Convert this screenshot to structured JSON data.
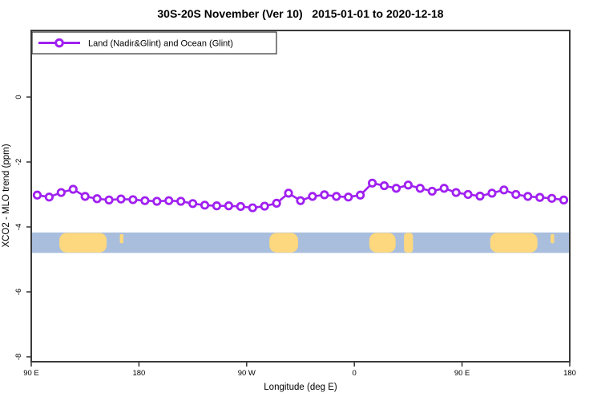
{
  "title": "30S-20S November (Ver 10)   2015-01-01 to 2020-12-18",
  "legend": {
    "label": "Land (Nadir&Glint) and Ocean (Glint)",
    "marker": "open-circle",
    "line_color": "#A020F0",
    "position": "top-left"
  },
  "chart_data": {
    "type": "line",
    "title": "30S-20S November (Ver 10)   2015-01-01 to 2020-12-18",
    "xlabel": "Longitude (deg E)",
    "ylabel": "XCO2 - MLO trend (ppm)",
    "xlim": [
      90,
      540
    ],
    "ylim": [
      -8.15,
      2.05
    ],
    "grid": false,
    "legend_position": "top-left",
    "x_ticks": [
      {
        "value": 90,
        "label": "90 E"
      },
      {
        "value": 180,
        "label": "180"
      },
      {
        "value": 270,
        "label": "90 W"
      },
      {
        "value": 360,
        "label": "0"
      },
      {
        "value": 450,
        "label": "90 E"
      },
      {
        "value": 540,
        "label": "180"
      }
    ],
    "y_ticks": [
      {
        "value": 0,
        "label": "0"
      },
      {
        "value": -2,
        "label": "-2"
      },
      {
        "value": -4,
        "label": "-4"
      },
      {
        "value": -6,
        "label": "-6"
      },
      {
        "value": -8,
        "label": "-8"
      }
    ],
    "series": [
      {
        "name": "Land (Nadir&Glint) and Ocean (Glint)",
        "color": "#A020F0",
        "marker": "open-circle",
        "x": [
          95,
          105,
          115,
          125,
          135,
          145,
          155,
          165,
          175,
          185,
          195,
          205,
          215,
          225,
          235,
          245,
          255,
          265,
          275,
          285,
          295,
          305,
          315,
          325,
          335,
          345,
          355,
          365,
          375,
          385,
          395,
          405,
          415,
          425,
          435,
          445,
          455,
          465,
          475,
          485,
          495,
          505,
          515,
          525,
          535
        ],
        "y": [
          -3.02,
          -3.08,
          -2.94,
          -2.84,
          -3.06,
          -3.13,
          -3.17,
          -3.14,
          -3.16,
          -3.19,
          -3.21,
          -3.19,
          -3.21,
          -3.28,
          -3.33,
          -3.35,
          -3.35,
          -3.37,
          -3.41,
          -3.36,
          -3.27,
          -2.96,
          -3.19,
          -3.06,
          -3.01,
          -3.06,
          -3.08,
          -3.02,
          -2.65,
          -2.73,
          -2.81,
          -2.71,
          -2.81,
          -2.9,
          -2.81,
          -2.94,
          -3.0,
          -3.05,
          -2.96,
          -2.86,
          -3.0,
          -3.06,
          -3.09,
          -3.12,
          -3.17
        ]
      }
    ],
    "map_strip": {
      "kind": "latitude-band-map",
      "value_top": -4.17,
      "value_bottom": -4.8,
      "ocean_color": "#A9BEDD",
      "land_color": "#FDD87E",
      "land_patches": [
        {
          "name": "australia",
          "from": 113.5,
          "to": 153,
          "partial": false
        },
        {
          "name": "new-caledonia",
          "from": 164,
          "to": 167,
          "partial": true
        },
        {
          "name": "south-america",
          "from": 289,
          "to": 313,
          "partial": false
        },
        {
          "name": "southern-africa",
          "from": 372.5,
          "to": 394.5,
          "partial": false
        },
        {
          "name": "madagascar",
          "from": 401.5,
          "to": 409,
          "partial": false
        },
        {
          "name": "australia-repeat",
          "from": 473.5,
          "to": 513,
          "partial": false
        },
        {
          "name": "new-caledonia-repeat",
          "from": 524,
          "to": 527,
          "partial": true
        }
      ]
    },
    "colors": {
      "plot_border": "#3a3a3a",
      "tick": "#333333",
      "text": "#000000"
    }
  }
}
